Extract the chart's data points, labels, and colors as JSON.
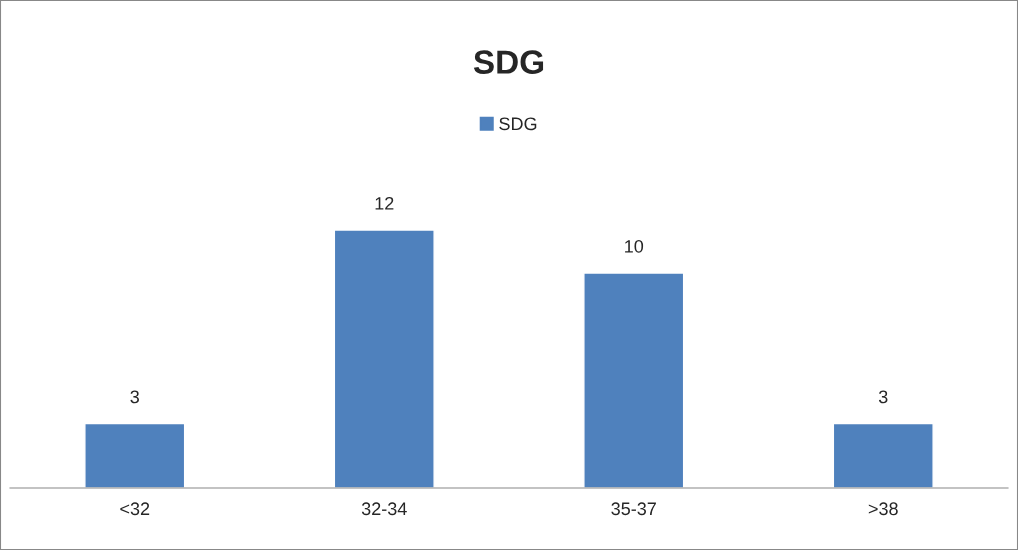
{
  "chart_data": {
    "type": "bar",
    "title": "SDG",
    "categories": [
      "<32",
      "32-34",
      "35-37",
      ">38"
    ],
    "series": [
      {
        "name": "SDG",
        "color": "#4f81bd",
        "values": [
          3,
          12,
          10,
          3
        ]
      }
    ],
    "data_labels": true,
    "legend": "top",
    "grid": false
  }
}
